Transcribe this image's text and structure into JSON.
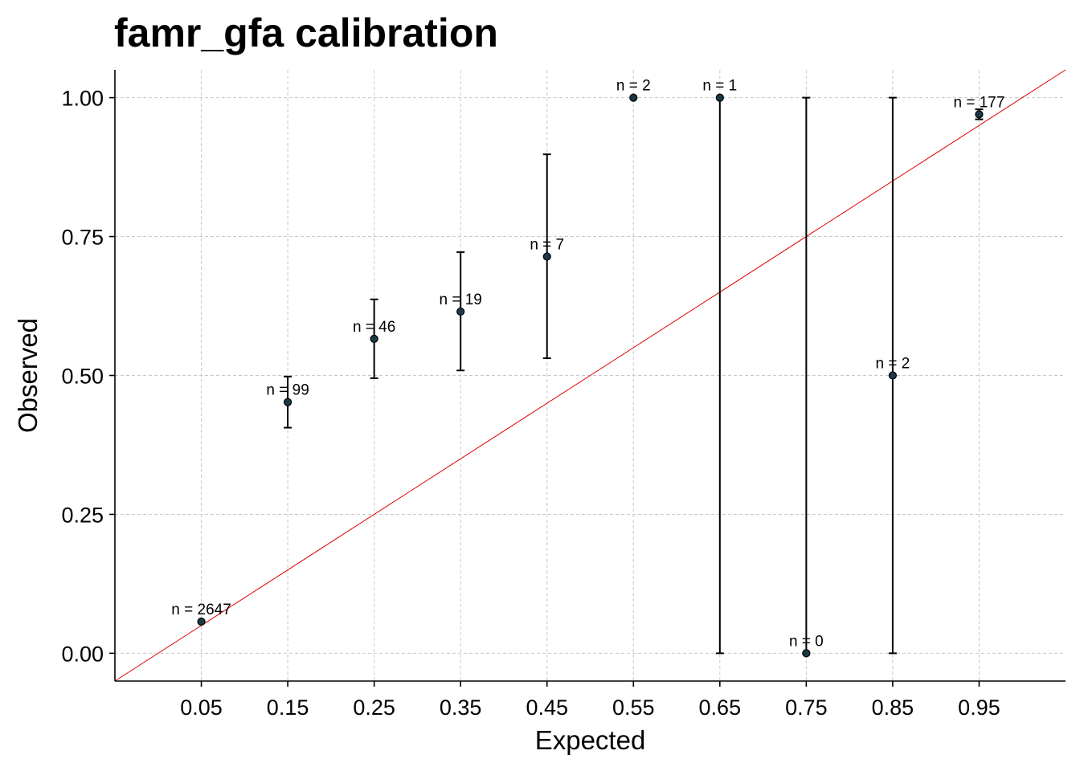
{
  "chart_data": {
    "type": "scatter",
    "title": "famr_gfa calibration",
    "xlabel": "Expected",
    "ylabel": "Observed",
    "x_ticks": [
      "0.05",
      "0.15",
      "0.25",
      "0.35",
      "0.45",
      "0.55",
      "0.65",
      "0.75",
      "0.85",
      "0.95"
    ],
    "y_ticks": [
      "0.00",
      "0.25",
      "0.50",
      "0.75",
      "1.00"
    ],
    "xlim": [
      -0.05,
      1.05
    ],
    "ylim": [
      -0.05,
      1.05
    ],
    "grid": true,
    "reference_line": {
      "type": "identity",
      "color": "#e00000"
    },
    "point_color": "#1b3a46",
    "points": [
      {
        "x": 0.05,
        "y": 0.057,
        "lower": 0.057,
        "upper": 0.057,
        "label": "n = 2647"
      },
      {
        "x": 0.15,
        "y": 0.452,
        "lower": 0.406,
        "upper": 0.498,
        "label": "n = 99"
      },
      {
        "x": 0.25,
        "y": 0.566,
        "lower": 0.495,
        "upper": 0.637,
        "label": "n = 46"
      },
      {
        "x": 0.35,
        "y": 0.615,
        "lower": 0.509,
        "upper": 0.722,
        "label": "n = 19"
      },
      {
        "x": 0.45,
        "y": 0.714,
        "lower": 0.531,
        "upper": 0.898,
        "label": "n = 7"
      },
      {
        "x": 0.55,
        "y": 1.0,
        "lower": 1.0,
        "upper": 1.0,
        "label": "n = 2"
      },
      {
        "x": 0.65,
        "y": 1.0,
        "lower": 0.0,
        "upper": 1.0,
        "label": "n = 1"
      },
      {
        "x": 0.75,
        "y": 0.0,
        "lower": 0.0,
        "upper": 1.0,
        "label": "n = 0"
      },
      {
        "x": 0.85,
        "y": 0.5,
        "lower": 0.0,
        "upper": 1.0,
        "label": "n = 2"
      },
      {
        "x": 0.95,
        "y": 0.97,
        "lower": 0.961,
        "upper": 0.979,
        "label": "n = 177"
      }
    ]
  }
}
